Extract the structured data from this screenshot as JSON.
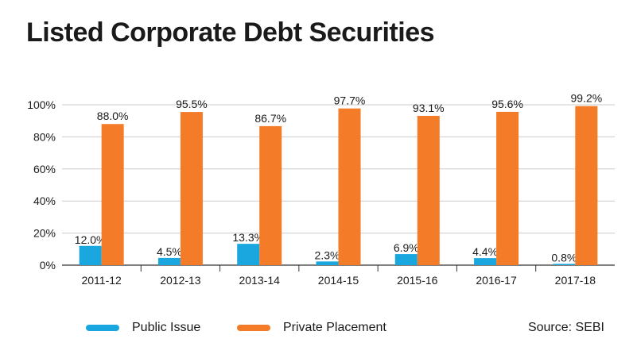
{
  "title": "Listed Corporate Debt Securities",
  "source": "Source: SEBI",
  "colors": {
    "public": "#1aa7e0",
    "private": "#f47b27",
    "grid": "#cccccc",
    "axis": "#333333"
  },
  "chart_data": {
    "type": "bar",
    "categories": [
      "2011-12",
      "2012-13",
      "2013-14",
      "2014-15",
      "2015-16",
      "2016-17",
      "2017-18"
    ],
    "series": [
      {
        "name": "Public Issue",
        "values": [
          12.0,
          4.5,
          13.3,
          2.3,
          6.9,
          4.4,
          0.8
        ],
        "labels": [
          "12.0%",
          "4.5%",
          "13.3%",
          "2.3%",
          "6.9%",
          "4.4%",
          "0.8%"
        ]
      },
      {
        "name": "Private Placement",
        "values": [
          88.0,
          95.5,
          86.7,
          97.7,
          93.1,
          95.6,
          99.2
        ],
        "labels": [
          "88.0%",
          "95.5%",
          "86.7%",
          "97.7%",
          "93.1%",
          "95.6%",
          "99.2%"
        ]
      }
    ],
    "ylim": [
      0,
      100
    ],
    "yticks": [
      "0%",
      "20%",
      "40%",
      "60%",
      "80%",
      "100%"
    ],
    "grid": true,
    "legend": "bottom-left"
  }
}
